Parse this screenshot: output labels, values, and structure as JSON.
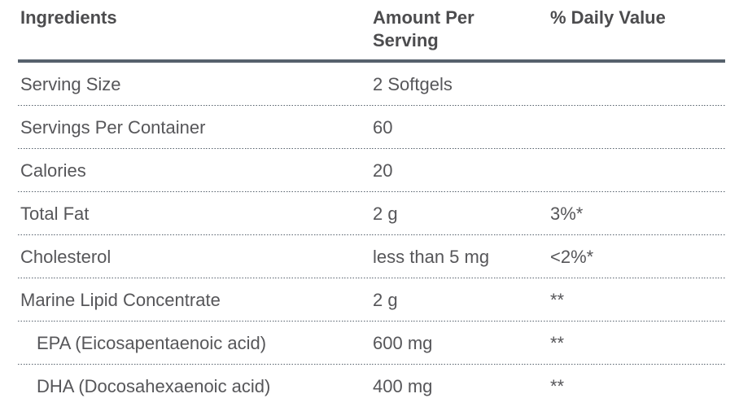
{
  "colors": {
    "accent_line": "#56616c",
    "divider": "#56616c",
    "header_text": "#4c4c4e",
    "body_text": "#565659"
  },
  "table": {
    "header": {
      "ingredients": "Ingredients",
      "amount": "Amount Per Serving",
      "daily_value": "% Daily Value"
    },
    "rows": [
      {
        "ingredient": "Serving Size",
        "amount": "2 Softgels",
        "daily_value": "",
        "indent": false
      },
      {
        "ingredient": "Servings Per Container",
        "amount": "60",
        "daily_value": "",
        "indent": false
      },
      {
        "ingredient": "Calories",
        "amount": "20",
        "daily_value": "",
        "indent": false
      },
      {
        "ingredient": "Total Fat",
        "amount": "2 g",
        "daily_value": "3%*",
        "indent": false
      },
      {
        "ingredient": "Cholesterol",
        "amount": "less than 5 mg",
        "daily_value": "<2%*",
        "indent": false
      },
      {
        "ingredient": "Marine Lipid Concentrate",
        "amount": "2 g",
        "daily_value": "**",
        "indent": false
      },
      {
        "ingredient": "EPA (Eicosapentaenoic acid)",
        "amount": "600 mg",
        "daily_value": "**",
        "indent": true
      },
      {
        "ingredient": "DHA (Docosahexaenoic acid)",
        "amount": "400 mg",
        "daily_value": "**",
        "indent": true
      }
    ]
  }
}
